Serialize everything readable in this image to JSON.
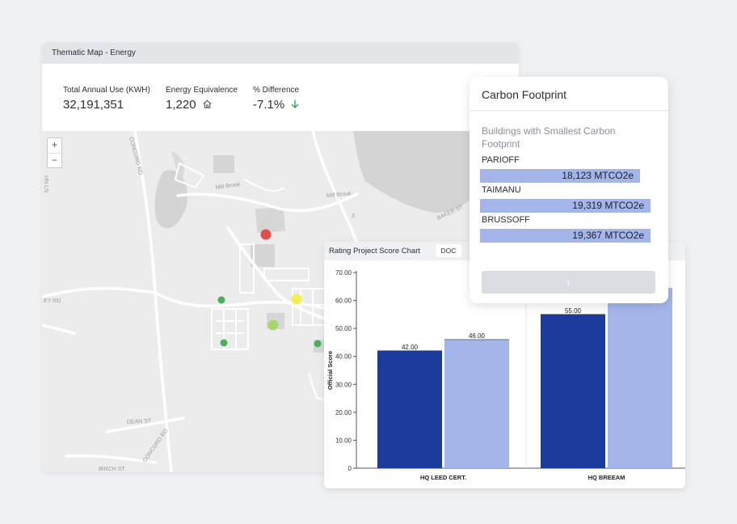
{
  "map": {
    "title": "Thematic Map - Energy",
    "metrics": [
      {
        "label": "Total Annual Use (KWH)",
        "value": "32,191,351",
        "icon": ""
      },
      {
        "label": "Energy Equivalence",
        "value": "1,220",
        "icon": "home-icon"
      },
      {
        "label": "% Difference",
        "value": "-7.1%",
        "icon": "arrow-down-icon"
      }
    ],
    "zoom_in": "+",
    "zoom_out": "−",
    "street_labels": [
      "CONCORD RD",
      "Mill Brook",
      "Mill Brook",
      "DEAN ST",
      "CONCORD RD",
      "BIRCH ST",
      "BAKER ST",
      "3",
      "EY RD",
      "HN LN"
    ],
    "marker_colors": {
      "red": "#e04d4d",
      "yellow": "#f2ef52",
      "light_green": "#a6d86a",
      "green": "#4caf5f"
    }
  },
  "chart": {
    "title": "Rating Project Score Chart",
    "doc_button": "DOC"
  },
  "chart_data": {
    "type": "bar",
    "categories": [
      "HQ LEED CERT.",
      "HQ BREEAM"
    ],
    "series": [
      {
        "values": [
          42.0,
          55.0
        ],
        "color": "#1a3a9c"
      },
      {
        "values": [
          46.0,
          64.5
        ],
        "color": "#a4b5e9"
      }
    ],
    "data_labels": [
      [
        "42.00",
        "55.00"
      ],
      [
        "46.00",
        ""
      ]
    ],
    "ylabel": "Official Score",
    "ylim": [
      0,
      70
    ],
    "yticks": [
      "0",
      "10.00",
      "20.00",
      "30.00",
      "40.00",
      "50.00",
      "60.00",
      "70.00"
    ]
  },
  "carbon": {
    "title": "Carbon Footprint",
    "subtitle": "Buildings with Smallest Carbon Footprint",
    "buildings": [
      {
        "name": "PARIOFF",
        "value": "18,123 MTCO2e",
        "fraction": 0.94
      },
      {
        "name": "TAIMANU",
        "value": "19,319 MTCO2e",
        "fraction": 1.0
      },
      {
        "name": "BRUSSOFF",
        "value": "19,367 MTCO2e",
        "fraction": 1.0
      }
    ],
    "next_label": "›"
  }
}
